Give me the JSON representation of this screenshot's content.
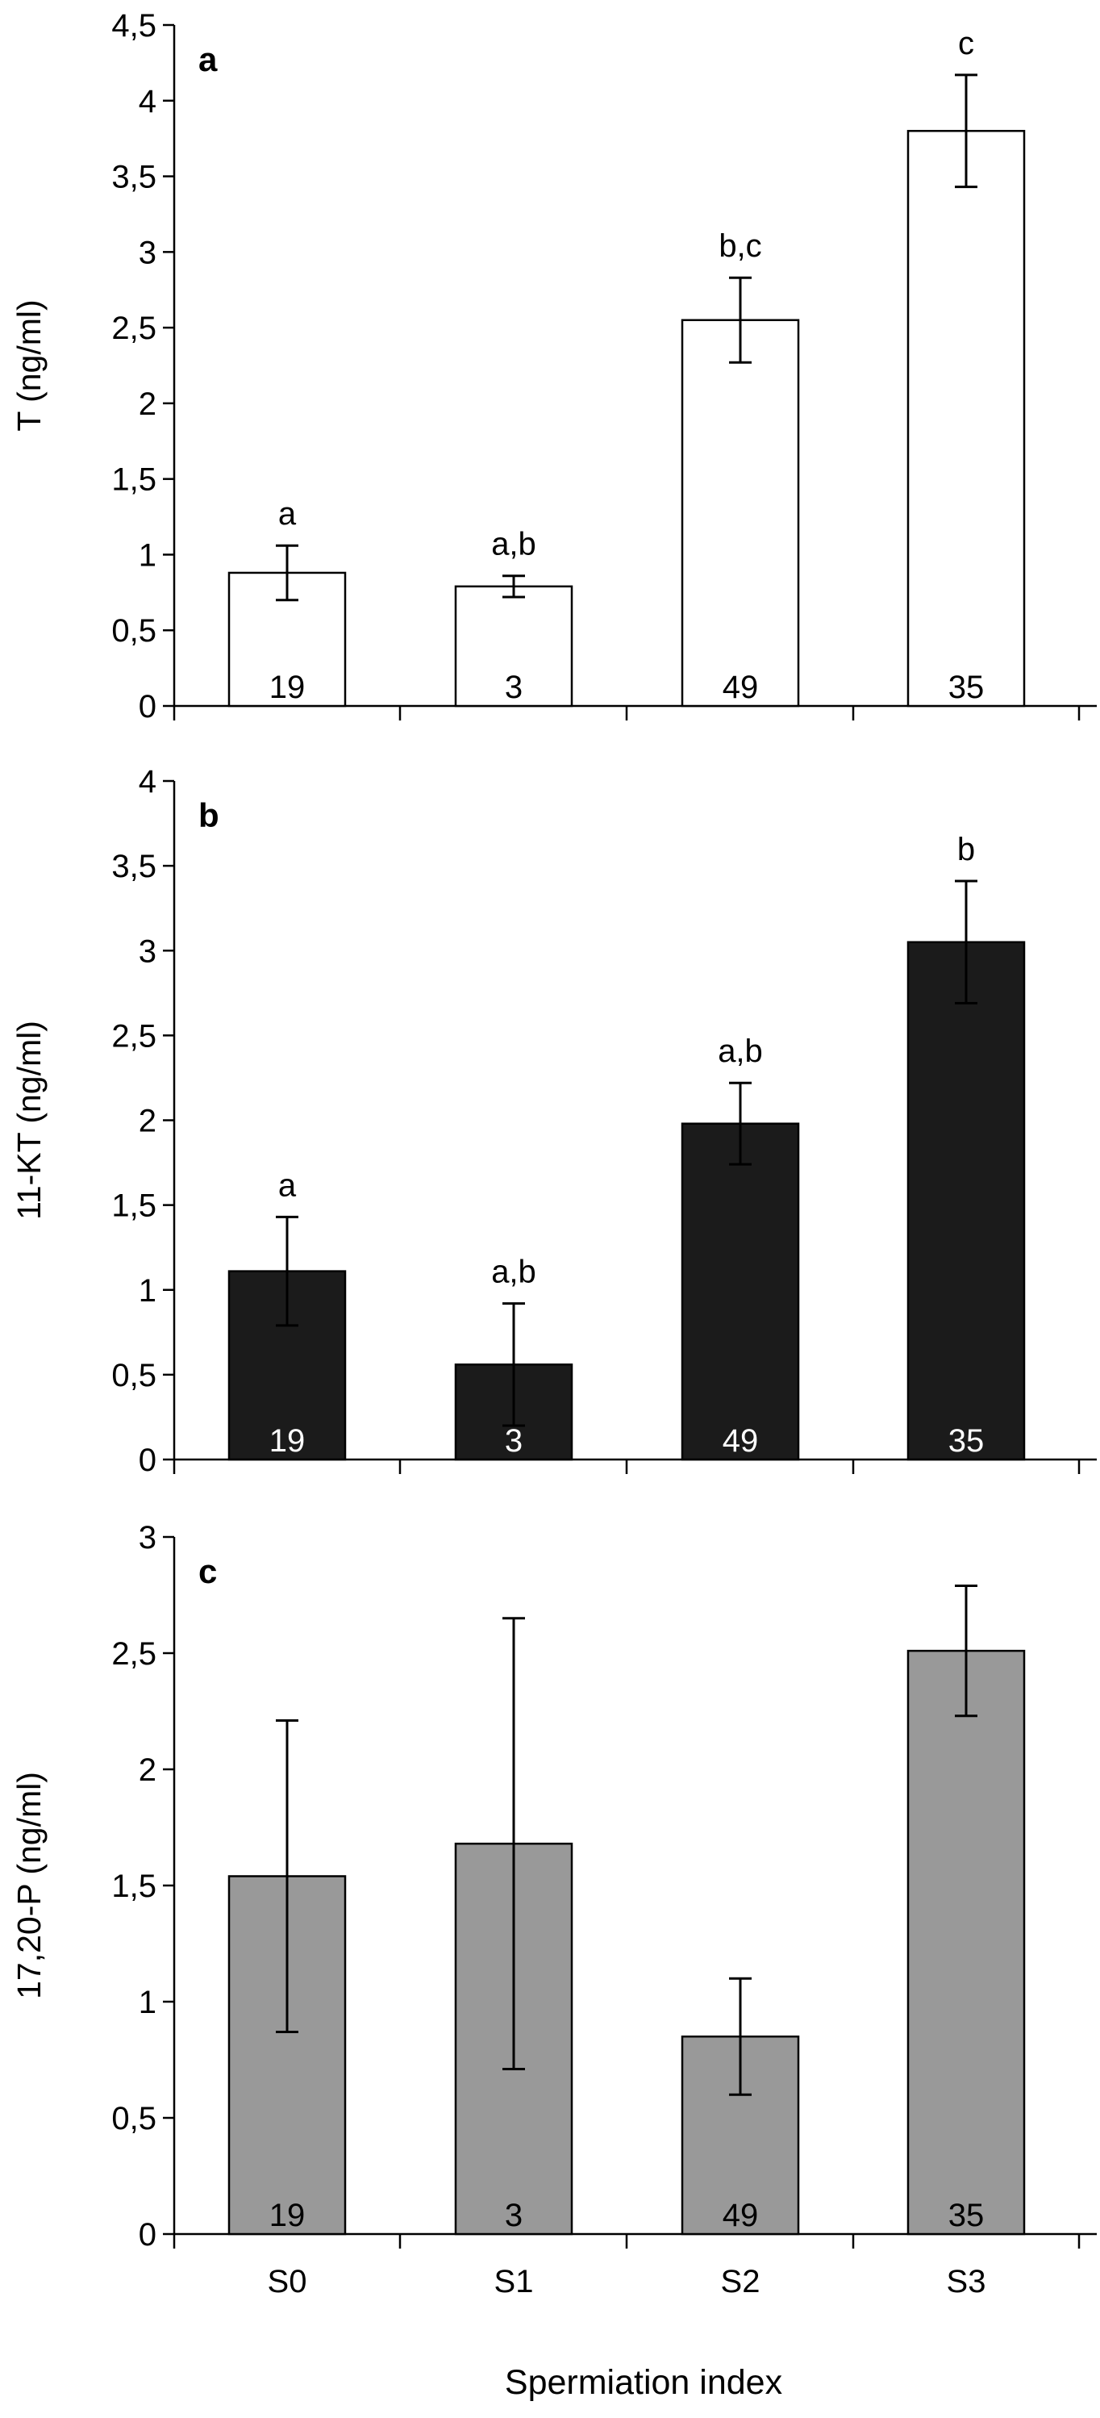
{
  "chart_data": [
    {
      "type": "bar",
      "panel": "a",
      "ylabel": "T (ng/ml)",
      "categories": [
        "S0",
        "S1",
        "S2",
        "S3"
      ],
      "values": [
        0.88,
        0.79,
        2.55,
        3.8
      ],
      "errors": [
        0.18,
        0.07,
        0.28,
        0.37
      ],
      "significance": [
        "a",
        "a,b",
        "b,c",
        "c"
      ],
      "n": [
        "19",
        "3",
        "49",
        "35"
      ],
      "ylim": [
        0,
        4.5
      ],
      "yticks": [
        0,
        0.5,
        1,
        1.5,
        2,
        2.5,
        3,
        3.5,
        4,
        4.5
      ],
      "ytick_labels": [
        "0",
        "0,5",
        "1",
        "1,5",
        "2",
        "2,5",
        "3",
        "3,5",
        "4",
        "4,5"
      ],
      "bar_color": "#ffffff",
      "n_label_color": "#000000"
    },
    {
      "type": "bar",
      "panel": "b",
      "ylabel": "11-KT (ng/ml)",
      "categories": [
        "S0",
        "S1",
        "S2",
        "S3"
      ],
      "values": [
        1.11,
        0.56,
        1.98,
        3.05
      ],
      "errors": [
        0.32,
        0.36,
        0.24,
        0.36
      ],
      "significance": [
        "a",
        "a,b",
        "a,b",
        "b"
      ],
      "n": [
        "19",
        "3",
        "49",
        "35"
      ],
      "ylim": [
        0,
        4
      ],
      "yticks": [
        0,
        0.5,
        1,
        1.5,
        2,
        2.5,
        3,
        3.5,
        4
      ],
      "ytick_labels": [
        "0",
        "0,5",
        "1",
        "1,5",
        "2",
        "2,5",
        "3",
        "3,5",
        "4"
      ],
      "bar_color": "#1b1b1b",
      "n_label_color": "#ffffff"
    },
    {
      "type": "bar",
      "panel": "c",
      "ylabel": "17,20-P (ng/ml)",
      "categories": [
        "S0",
        "S1",
        "S2",
        "S3"
      ],
      "values": [
        1.54,
        1.68,
        0.85,
        2.51
      ],
      "errors": [
        0.67,
        0.97,
        0.25,
        0.28
      ],
      "significance": [],
      "n": [
        "19",
        "3",
        "49",
        "35"
      ],
      "ylim": [
        0,
        3
      ],
      "yticks": [
        0,
        0.5,
        1,
        1.5,
        2,
        2.5,
        3
      ],
      "ytick_labels": [
        "0",
        "0,5",
        "1",
        "1,5",
        "2",
        "2,5",
        "3"
      ],
      "bar_color": "#999999",
      "n_label_color": "#000000",
      "xtick_labels": [
        "S0",
        "S1",
        "S2",
        "S3"
      ],
      "xlabel": "Spermiation index"
    }
  ]
}
